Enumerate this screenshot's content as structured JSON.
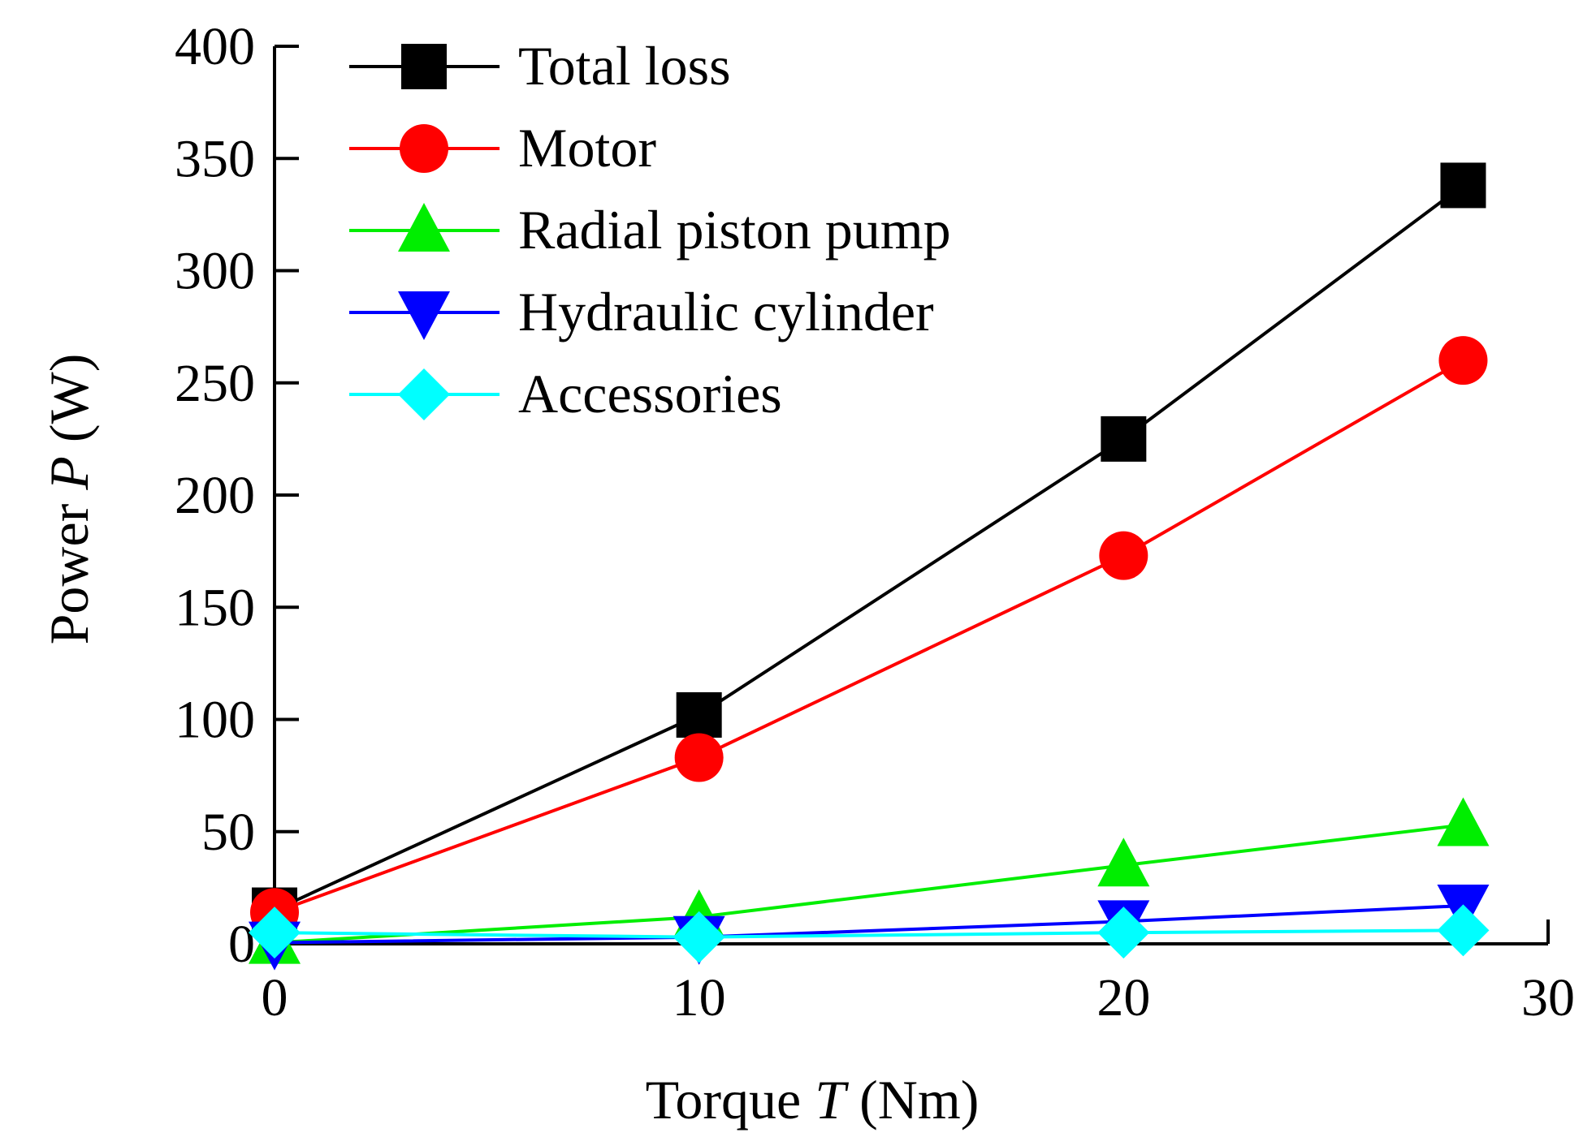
{
  "chart_data": {
    "type": "line",
    "xlabel": "Torque T (Nm)",
    "xlabel_parts": {
      "prefix": "Torque ",
      "var": "T",
      "suffix": " (Nm)"
    },
    "ylabel": "Power P (W)",
    "ylabel_parts": {
      "prefix": "Power ",
      "var": "P",
      "suffix": " (W)"
    },
    "xlim": [
      0,
      30
    ],
    "ylim": [
      0,
      400
    ],
    "xticks": [
      0,
      10,
      20,
      30
    ],
    "yticks": [
      0,
      50,
      100,
      150,
      200,
      250,
      300,
      350,
      400
    ],
    "grid": false,
    "legend_position": "top-left",
    "series": [
      {
        "name": "Total loss",
        "color": "#000000",
        "marker": "square",
        "x": [
          0,
          10,
          20,
          28
        ],
        "y": [
          15,
          102,
          225,
          338
        ]
      },
      {
        "name": "Motor",
        "color": "#ff0000",
        "marker": "circle",
        "x": [
          0,
          10,
          20,
          28
        ],
        "y": [
          14,
          83,
          173,
          260
        ]
      },
      {
        "name": "Radial piston pump",
        "color": "#00ee00",
        "marker": "triangle-up",
        "x": [
          0,
          10,
          20,
          28
        ],
        "y": [
          0.5,
          12,
          35,
          53
        ]
      },
      {
        "name": "Hydraulic cylinder",
        "color": "#0000ff",
        "marker": "triangle-down",
        "x": [
          0,
          10,
          20,
          28
        ],
        "y": [
          0.5,
          3,
          10,
          17
        ]
      },
      {
        "name": "Accessories",
        "color": "#00ffff",
        "marker": "diamond",
        "x": [
          0,
          10,
          20,
          28
        ],
        "y": [
          5,
          3,
          5,
          6
        ]
      }
    ]
  }
}
